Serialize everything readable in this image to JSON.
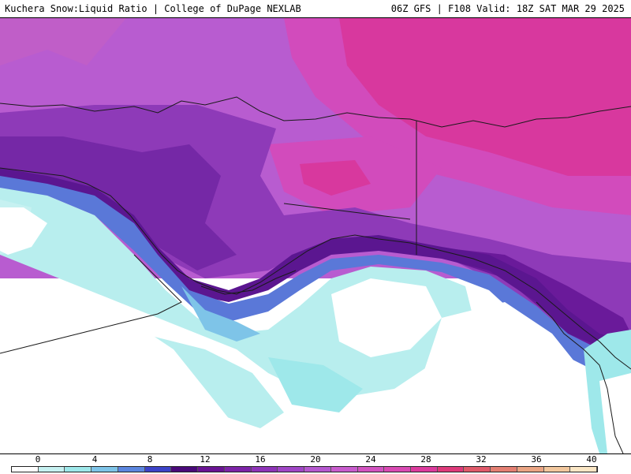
{
  "header": {
    "title_left": "Kuchera Snow:Liquid Ratio | College of DuPage NEXLAB",
    "title_right": "06Z GFS | F108 Valid: 18Z SAT MAR 29 2025"
  },
  "legend": {
    "labels": [
      "0",
      "4",
      "8",
      "12",
      "16",
      "20",
      "24",
      "28",
      "32",
      "36",
      "40"
    ],
    "colors": [
      "#ffffff",
      "#c6f1f1",
      "#9ee8ea",
      "#7ec4e8",
      "#5c86df",
      "#3c43c8",
      "#4a0a7a",
      "#6a1494",
      "#7d24a8",
      "#8e34b8",
      "#a046c6",
      "#b558cf",
      "#c85ccd",
      "#d253c0",
      "#d94ab3",
      "#dc3b9d",
      "#de3a7a",
      "#e05a6a",
      "#e47f72",
      "#eaa483",
      "#f2c79d",
      "#fae6c4"
    ]
  },
  "colors": {
    "ocean_low": "#ffffff",
    "cyan": "#b8eeee",
    "blue": "#5a78d8",
    "deep_purple": "#5b1690",
    "purple": "#8e3ab8",
    "magenta": "#d04ac0",
    "pink": "#d8369c",
    "coast": "#1a1a1a"
  }
}
